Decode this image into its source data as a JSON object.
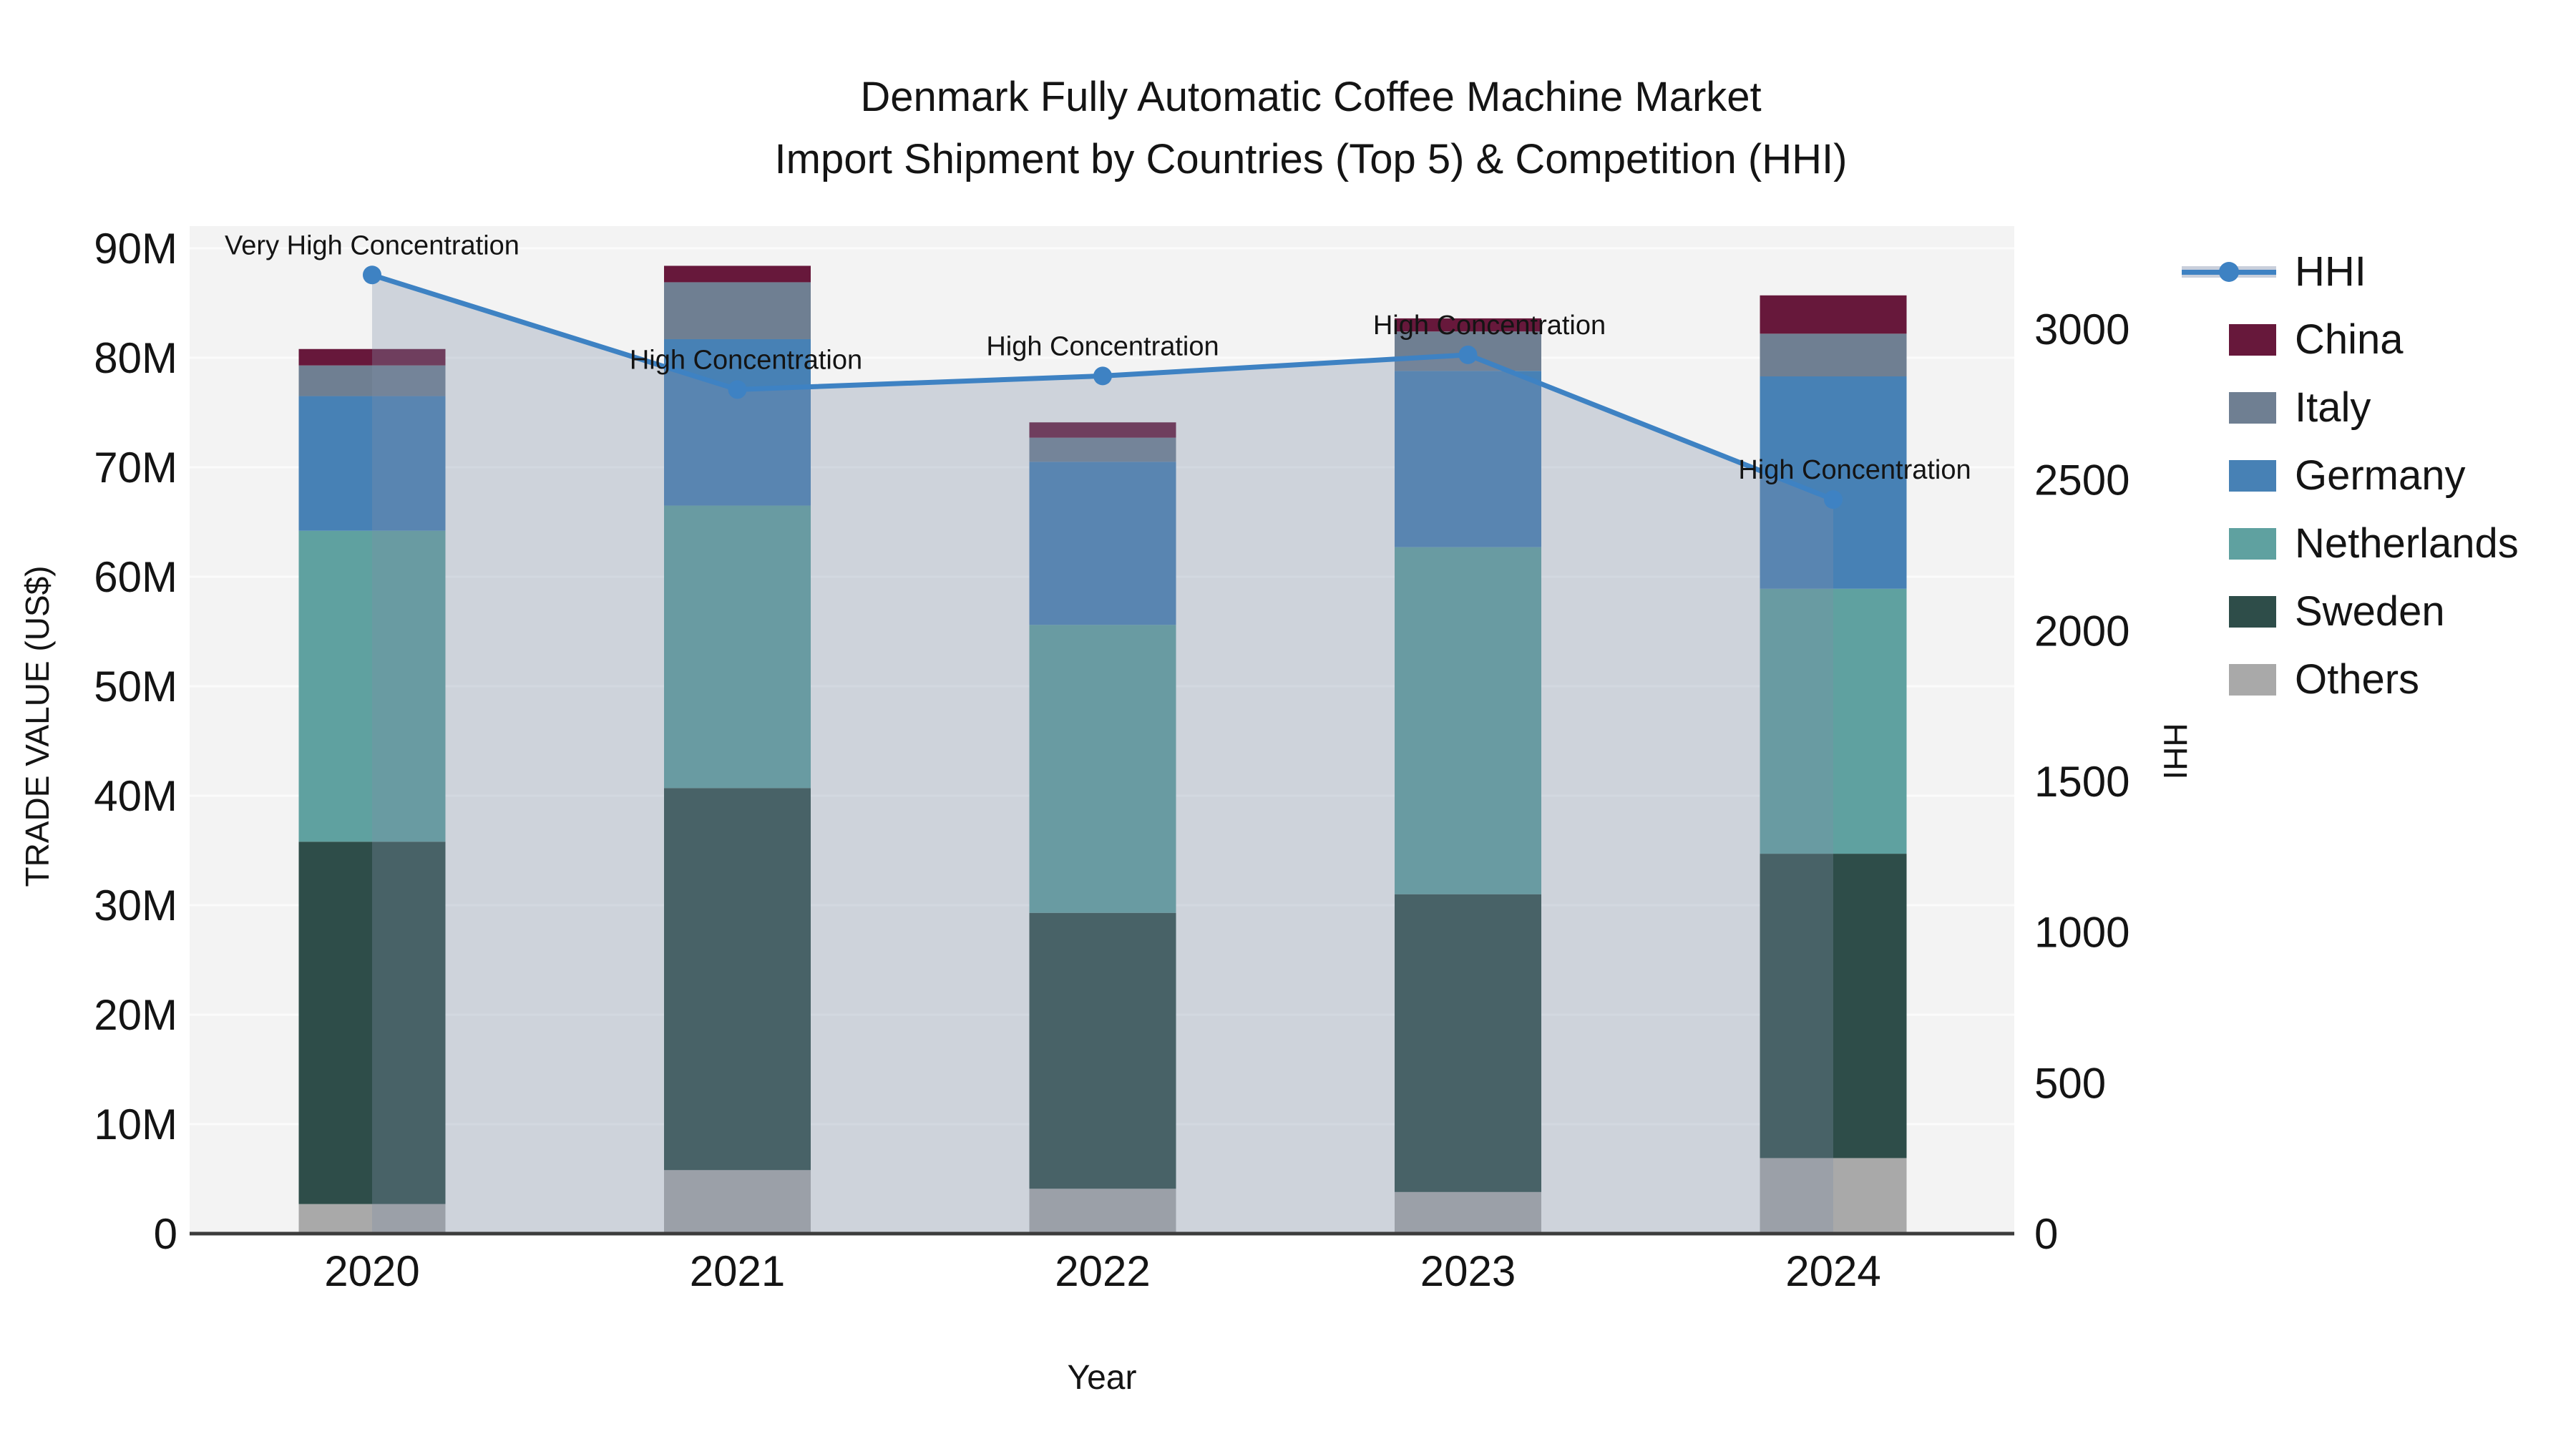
{
  "title": {
    "line1": "Denmark Fully Automatic Coffee Machine Market",
    "line2": "Import Shipment by Countries (Top 5) & Competition (HHI)"
  },
  "axes": {
    "x_label": "Year",
    "y_left_label": "TRADE VALUE (US$)",
    "y_right_label": "HHI",
    "x_ticks": [
      "2020",
      "2021",
      "2022",
      "2023",
      "2024"
    ],
    "y_left_ticks": [
      "0",
      "10M",
      "20M",
      "30M",
      "40M",
      "50M",
      "60M",
      "70M",
      "80M",
      "90M"
    ],
    "y_right_ticks": [
      "0",
      "500",
      "1000",
      "1500",
      "2000",
      "2500",
      "3000"
    ]
  },
  "legend": {
    "items": [
      {
        "label": "HHI",
        "type": "line",
        "color": "#3E82C3",
        "band": "#C9CFDB"
      },
      {
        "label": "China",
        "type": "patch",
        "color": "#67183B"
      },
      {
        "label": "Italy",
        "type": "patch",
        "color": "#6F7F92"
      },
      {
        "label": "Germany",
        "type": "patch",
        "color": "#4781B5"
      },
      {
        "label": "Netherlands",
        "type": "patch",
        "color": "#5FA1A0"
      },
      {
        "label": "Sweden",
        "type": "patch",
        "color": "#2E4D49"
      },
      {
        "label": "Others",
        "type": "patch",
        "color": "#A9A9A9"
      }
    ]
  },
  "chart_data": {
    "type": "stacked-bar+line",
    "title": "Denmark Fully Automatic Coffee Machine Market — Import Shipment by Countries (Top 5) & Competition (HHI)",
    "xlabel": "Year",
    "ylabel_left": "TRADE VALUE (US$)",
    "ylabel_right": "HHI",
    "categories": [
      "2020",
      "2021",
      "2022",
      "2023",
      "2024"
    ],
    "unit": "million US$",
    "ylim_left_M": [
      0,
      92
    ],
    "ylim_right": [
      0,
      3342
    ],
    "grid": "horizontal-10M",
    "legend_position": "right",
    "stack_order_bottom_to_top": [
      "Others",
      "Sweden",
      "Netherlands",
      "Germany",
      "Italy",
      "China"
    ],
    "series": [
      {
        "name": "Others",
        "values": [
          2.7,
          5.8,
          4.1,
          3.8,
          6.9
        ],
        "color": "#A9A9A9"
      },
      {
        "name": "Sweden",
        "values": [
          33.1,
          34.9,
          25.2,
          27.2,
          27.8
        ],
        "color": "#2E4D49"
      },
      {
        "name": "Netherlands",
        "values": [
          28.4,
          25.8,
          26.3,
          31.7,
          24.2
        ],
        "color": "#5FA1A0"
      },
      {
        "name": "Germany",
        "values": [
          12.3,
          15.2,
          14.9,
          16.1,
          19.4
        ],
        "color": "#4781B5"
      },
      {
        "name": "Italy",
        "values": [
          2.8,
          5.2,
          2.2,
          3.6,
          3.9
        ],
        "color": "#6F7F92"
      },
      {
        "name": "China",
        "values": [
          1.5,
          1.5,
          1.4,
          1.2,
          3.5
        ],
        "color": "#67183B"
      }
    ],
    "totals_M": [
      80.8,
      88.4,
      74.1,
      83.6,
      85.7
    ],
    "line_series": {
      "name": "HHI",
      "axis": "right",
      "values": [
        3180,
        2800,
        2845,
        2915,
        2435
      ],
      "color": "#3E82C3",
      "area_fill": "rgba(128,144,168,0.32)"
    },
    "annotations": [
      {
        "year": "2020",
        "text": "Very High Concentration"
      },
      {
        "year": "2021",
        "text": "High Concentration"
      },
      {
        "year": "2022",
        "text": "High Concentration"
      },
      {
        "year": "2023",
        "text": "High Concentration"
      },
      {
        "year": "2024",
        "text": "High Concentration"
      }
    ]
  },
  "style": {
    "plot_bg": "#F3F3F3",
    "gridline": "#FBFBFB",
    "axis_line": "#3C3C3C",
    "text": "#141414"
  }
}
